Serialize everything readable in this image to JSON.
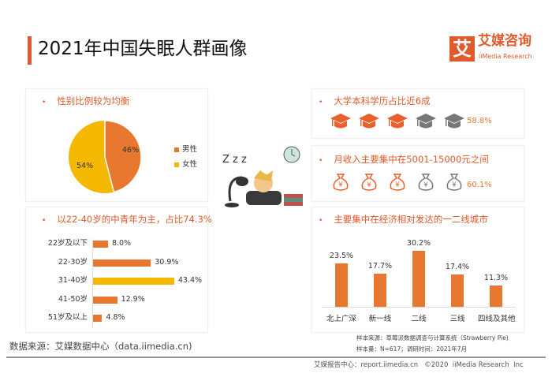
{
  "title": "2021年中国失眠人群画像",
  "logo": {
    "mark": "艾",
    "cn": "艾媒咨询",
    "en": "iiMedia Research"
  },
  "gender": {
    "header": "性别比例较为均衡",
    "male_label": "男性",
    "female_label": "女性",
    "male_value": "46%",
    "female_value": "54%",
    "male_pct": 46,
    "colors": {
      "male": "#e8782f",
      "female": "#f5b800"
    }
  },
  "age": {
    "header": "以22-40岁的中青年为主，占比74.3%",
    "rows": [
      {
        "label": "22岁及以下",
        "value": 8.0,
        "text": "8.0%"
      },
      {
        "label": "22-30岁",
        "value": 30.9,
        "text": "30.9%"
      },
      {
        "label": "31-40岁",
        "value": 43.4,
        "text": "43.4%",
        "highlight": true
      },
      {
        "label": "41-50岁",
        "value": 12.9,
        "text": "12.9%"
      },
      {
        "label": "51岁及以上",
        "value": 4.8,
        "text": "4.8%"
      }
    ]
  },
  "education": {
    "header": "大学本科学历占比近6成",
    "value": "58.8%",
    "filled_icons": 3,
    "total_icons": 5,
    "icon": "graduation-cap-icon"
  },
  "income": {
    "header": "月收入主要集中在5001-15000元之间",
    "value": "60.1%",
    "filled_icons": 3,
    "total_icons": 5,
    "icon": "money-bag-icon",
    "glyph": "¥"
  },
  "city": {
    "header": "主要集中在经济相对发达的一二线城市",
    "bars": [
      {
        "label": "北上广深",
        "value": 23.5,
        "text": "23.5%"
      },
      {
        "label": "新一线",
        "value": 17.7,
        "text": "17.7%"
      },
      {
        "label": "二线",
        "value": 30.2,
        "text": "30.2%"
      },
      {
        "label": "三线",
        "value": 17.4,
        "text": "17.4%"
      },
      {
        "label": "四线及其他",
        "value": 11.3,
        "text": "11.3%"
      }
    ]
  },
  "source": "数据来源：艾媒数据中心（data.iimedia.cn)",
  "sample_source": "样本来源：草莓派数据调查与计算系统（Strawberry Pie)",
  "sample_size": "样本量：N=617；调研时间：2021年7月",
  "footer": "艾媒报告中心：report.iimedia.cn   ©2020  iiMedia Research  Inc",
  "illustration": {
    "zzz": "Z z z"
  }
}
